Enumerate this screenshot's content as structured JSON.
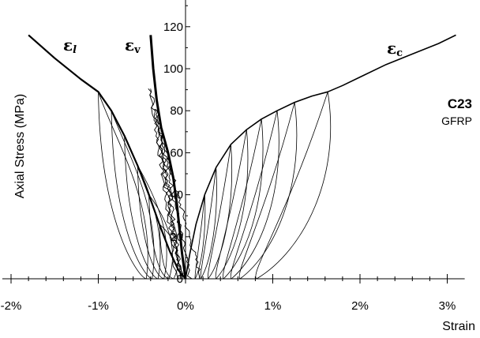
{
  "chart_data": {
    "type": "line",
    "title": "",
    "xlabel": "Strain",
    "ylabel": "Axial Stress (MPa)",
    "x_unit": "%",
    "xlim": [
      -2.1,
      3.2
    ],
    "ylim": [
      0,
      135
    ],
    "x_ticks": [
      -2,
      -1,
      0,
      1,
      2,
      3
    ],
    "x_tick_labels": [
      "-2%",
      "-1%",
      "0%",
      "1%",
      "2%",
      "3%"
    ],
    "y_ticks": [
      0,
      20,
      40,
      60,
      80,
      100,
      120
    ],
    "y_tick_labels": [
      "0",
      "20",
      "40",
      "60",
      "80",
      "100",
      "120"
    ],
    "grid": false,
    "annotations": {
      "specimen": "C23",
      "material": "GFRP"
    },
    "series": [
      {
        "label_main": "ε",
        "label_sub": "l",
        "envelope": [
          [
            -1.8,
            116
          ],
          [
            -1.5,
            105
          ],
          [
            -1.2,
            95
          ],
          [
            -1.0,
            89
          ],
          [
            -0.85,
            80
          ],
          [
            -0.7,
            68
          ],
          [
            -0.55,
            54
          ],
          [
            -0.42,
            40
          ],
          [
            -0.3,
            26
          ],
          [
            -0.18,
            13
          ],
          [
            -0.08,
            4
          ],
          [
            0.0,
            0
          ]
        ],
        "unload_strains": [
          -1.0,
          -0.85,
          -0.7,
          -0.55,
          -0.42,
          -0.3
        ]
      },
      {
        "label_main": "ε",
        "label_sub": "v",
        "envelope": [
          [
            -0.4,
            116
          ],
          [
            -0.37,
            100
          ],
          [
            -0.33,
            85
          ],
          [
            -0.28,
            72
          ],
          [
            -0.2,
            60
          ],
          [
            -0.14,
            48
          ],
          [
            -0.1,
            36
          ],
          [
            -0.07,
            24
          ],
          [
            -0.04,
            12
          ],
          [
            0.0,
            0
          ]
        ],
        "unload_strains": [
          -0.4,
          -0.33,
          -0.28
        ]
      },
      {
        "label_main": "ε",
        "label_sub": "c",
        "envelope": [
          [
            0.0,
            0
          ],
          [
            0.05,
            12
          ],
          [
            0.12,
            26
          ],
          [
            0.22,
            40
          ],
          [
            0.35,
            53
          ],
          [
            0.52,
            64
          ],
          [
            0.7,
            71
          ],
          [
            0.87,
            76
          ],
          [
            1.05,
            80
          ],
          [
            1.25,
            84
          ],
          [
            1.45,
            87
          ],
          [
            1.63,
            89
          ],
          [
            1.8,
            92
          ],
          [
            2.0,
            96
          ],
          [
            2.3,
            102
          ],
          [
            2.6,
            107
          ],
          [
            2.9,
            112
          ],
          [
            3.1,
            116
          ]
        ],
        "unload_strains": [
          0.22,
          0.35,
          0.52,
          0.7,
          0.87,
          1.05,
          1.25,
          1.63
        ]
      }
    ]
  }
}
